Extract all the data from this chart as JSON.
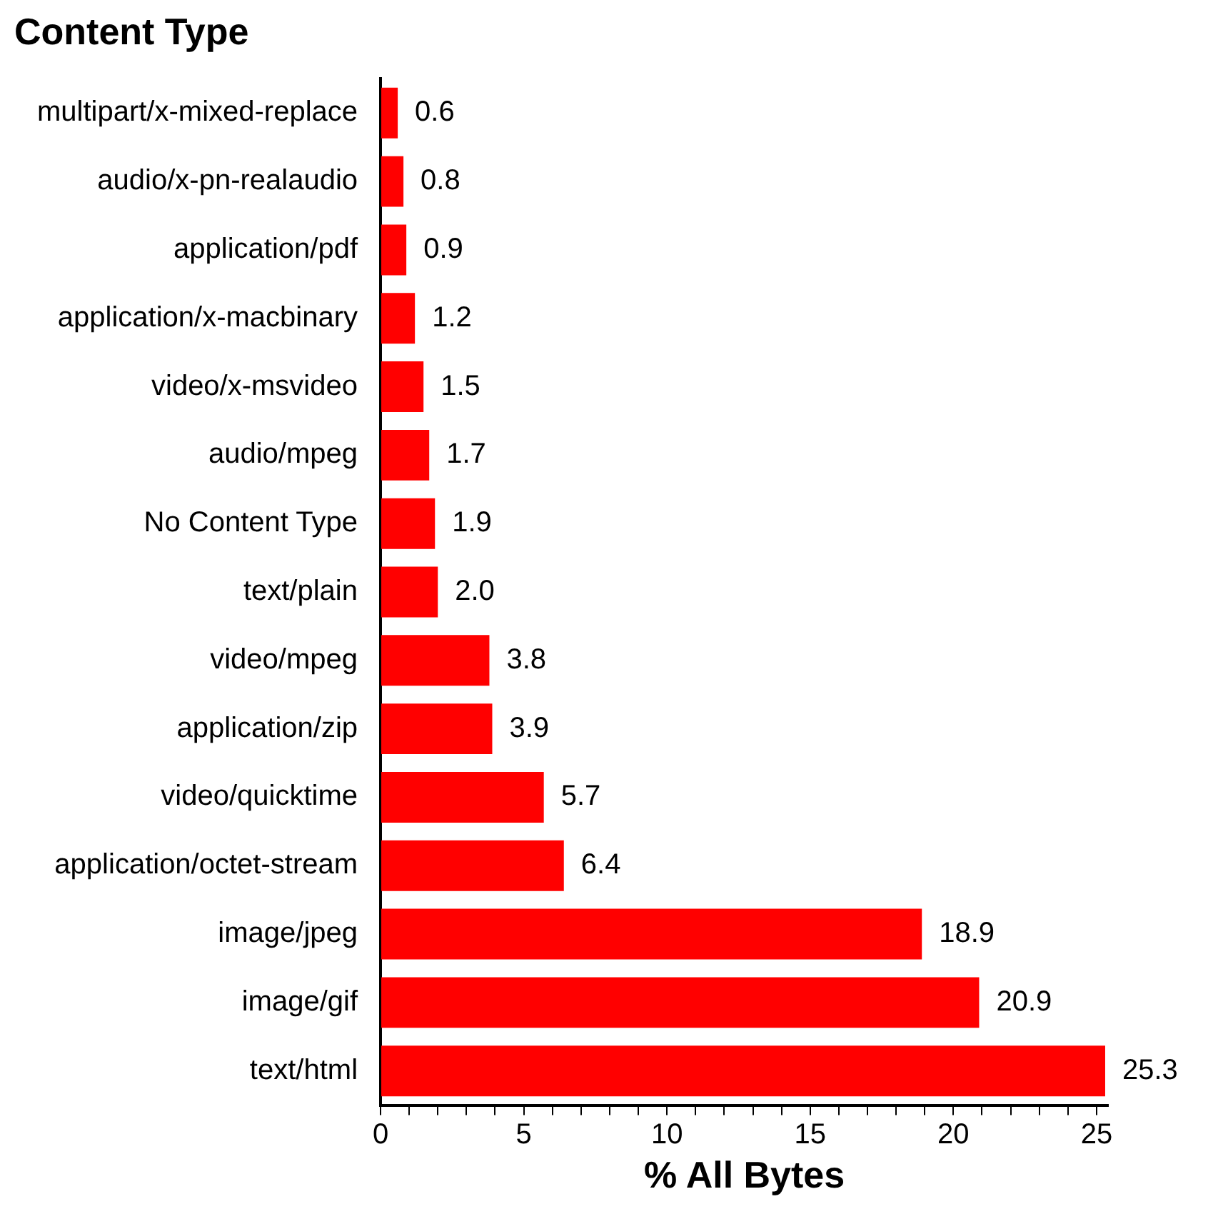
{
  "chart_data": {
    "type": "bar",
    "orientation": "horizontal",
    "ylabel": "Content Type",
    "xlabel": "% All Bytes",
    "categories": [
      "multipart/x-mixed-replace",
      "audio/x-pn-realaudio",
      "application/pdf",
      "application/x-macbinary",
      "video/x-msvideo",
      "audio/mpeg",
      "No Content Type",
      "text/plain",
      "video/mpeg",
      "application/zip",
      "video/quicktime",
      "application/octet-stream",
      "image/jpeg",
      "image/gif",
      "text/html"
    ],
    "values": [
      0.6,
      0.8,
      0.9,
      1.2,
      1.5,
      1.7,
      1.9,
      2.0,
      3.8,
      3.9,
      5.7,
      6.4,
      18.9,
      20.9,
      25.3
    ],
    "value_labels": [
      "0.6",
      "0.8",
      "0.9",
      "1.2",
      "1.5",
      "1.7",
      "1.9",
      "2.0",
      "3.8",
      "3.9",
      "5.7",
      "6.4",
      "18.9",
      "20.9",
      "25.3"
    ],
    "color": "#ff0000",
    "xlim": [
      0,
      25.4
    ],
    "xticks": [
      0,
      {
        "value": 1,
        "label": null
      },
      {
        "value": 2,
        "label": null
      },
      {
        "value": 3,
        "label": null
      },
      {
        "value": 4,
        "label": null
      },
      5,
      {
        "value": 6,
        "label": null
      },
      {
        "value": 7,
        "label": null
      },
      {
        "value": 8,
        "label": null
      },
      {
        "value": 9,
        "label": null
      },
      10,
      {
        "value": 11,
        "label": null
      },
      {
        "value": 12,
        "label": null
      },
      {
        "value": 13,
        "label": null
      },
      {
        "value": 14,
        "label": null
      },
      15,
      {
        "value": 16,
        "label": null
      },
      {
        "value": 17,
        "label": null
      },
      {
        "value": 18,
        "label": null
      },
      {
        "value": 19,
        "label": null
      },
      20,
      {
        "value": 21,
        "label": null
      },
      {
        "value": 22,
        "label": null
      },
      {
        "value": 23,
        "label": null
      },
      {
        "value": 24,
        "label": null
      },
      25
    ],
    "grid": false,
    "legend": false
  }
}
